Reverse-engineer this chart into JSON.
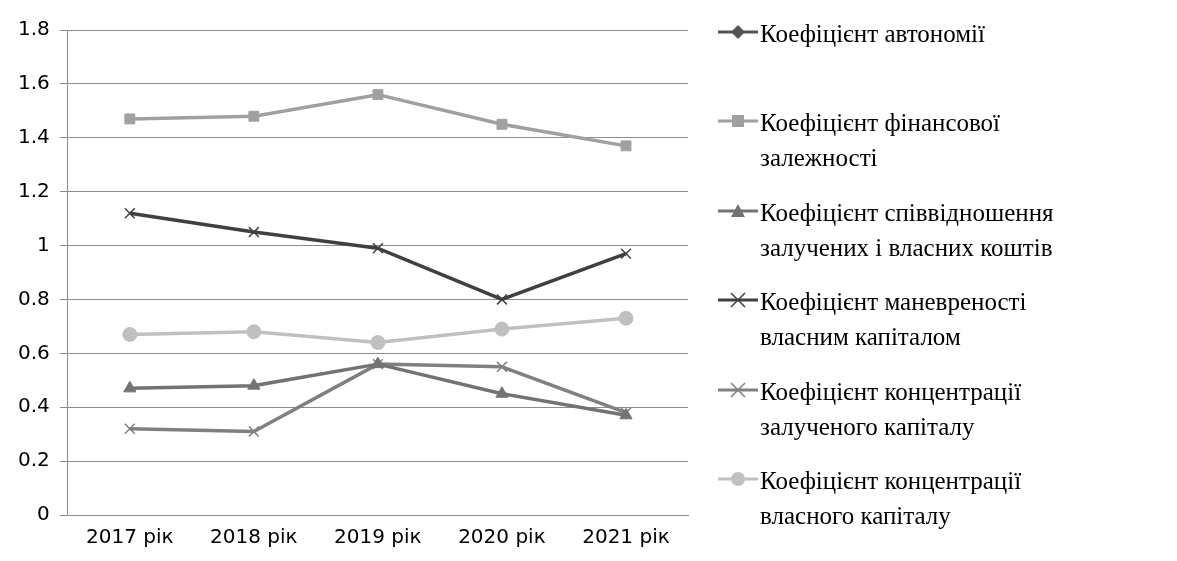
{
  "chart_data": {
    "type": "line",
    "categories": [
      "2017 рік",
      "2018 рік",
      "2019 рік",
      "2020 рік",
      "2021 рік"
    ],
    "ylim": [
      0,
      1.8
    ],
    "yticks": [
      0,
      0.2,
      0.4,
      0.6,
      0.8,
      1,
      1.2,
      1.4,
      1.6,
      1.8
    ],
    "grid": "y",
    "legend": "right",
    "line_style": "solid",
    "series": [
      {
        "name": "Коефіцієнт автономії",
        "color": "#555555",
        "marker": "diamond",
        "values": [
          null,
          null,
          null,
          null,
          null
        ]
      },
      {
        "name": "Коефіцієнт фінансової залежності",
        "color": "#a0a0a0",
        "marker": "square",
        "values": [
          1.47,
          1.48,
          1.56,
          1.45,
          1.37
        ]
      },
      {
        "name": "Коефіцієнт співвідношення залучених і власних коштів",
        "color": "#737373",
        "marker": "triangle",
        "values": [
          0.47,
          0.48,
          0.56,
          0.45,
          0.37
        ]
      },
      {
        "name": "Коефіцієнт маневреності власним капіталом",
        "color": "#404040",
        "marker": "cross",
        "values": [
          1.12,
          1.05,
          0.99,
          0.8,
          0.97
        ]
      },
      {
        "name": "Коефіцієнт концентрації залученого капіталу",
        "color": "#808080",
        "marker": "cross",
        "values": [
          0.32,
          0.31,
          0.56,
          0.55,
          0.38
        ]
      },
      {
        "name": "Коефіцієнт концентрації власного капіталу",
        "color": "#c0c0c0",
        "marker": "circle",
        "values": [
          0.67,
          0.68,
          0.64,
          0.69,
          0.73
        ]
      }
    ]
  }
}
